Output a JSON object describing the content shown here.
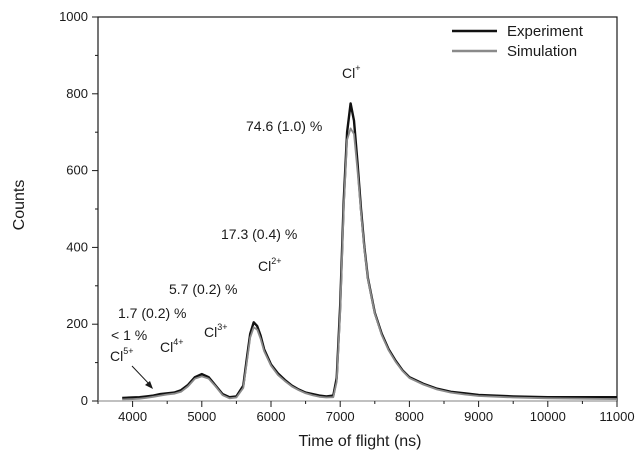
{
  "chart_data": {
    "type": "line",
    "title": "",
    "xlabel": "Time of flight (ns)",
    "ylabel": "Counts",
    "xlim": [
      3500,
      11000
    ],
    "ylim": [
      0,
      1000
    ],
    "x_ticks": [
      4000,
      5000,
      6000,
      7000,
      8000,
      9000,
      10000,
      11000
    ],
    "y_ticks": [
      0,
      200,
      400,
      600,
      800,
      1000
    ],
    "grid": false,
    "legend_position": "top-right",
    "series": [
      {
        "name": "Experiment",
        "color": "#111111",
        "points": [
          [
            3850,
            8
          ],
          [
            4000,
            9
          ],
          [
            4100,
            10
          ],
          [
            4200,
            12
          ],
          [
            4300,
            14
          ],
          [
            4400,
            18
          ],
          [
            4500,
            20
          ],
          [
            4600,
            22
          ],
          [
            4700,
            28
          ],
          [
            4800,
            42
          ],
          [
            4900,
            62
          ],
          [
            5000,
            70
          ],
          [
            5100,
            62
          ],
          [
            5200,
            40
          ],
          [
            5300,
            18
          ],
          [
            5400,
            10
          ],
          [
            5500,
            12
          ],
          [
            5600,
            40
          ],
          [
            5650,
            110
          ],
          [
            5700,
            175
          ],
          [
            5750,
            205
          ],
          [
            5800,
            195
          ],
          [
            5850,
            170
          ],
          [
            5900,
            135
          ],
          [
            6000,
            95
          ],
          [
            6100,
            72
          ],
          [
            6200,
            55
          ],
          [
            6300,
            40
          ],
          [
            6400,
            30
          ],
          [
            6500,
            22
          ],
          [
            6600,
            18
          ],
          [
            6700,
            14
          ],
          [
            6800,
            12
          ],
          [
            6900,
            14
          ],
          [
            6950,
            60
          ],
          [
            7000,
            250
          ],
          [
            7050,
            520
          ],
          [
            7100,
            700
          ],
          [
            7150,
            775
          ],
          [
            7200,
            730
          ],
          [
            7250,
            620
          ],
          [
            7300,
            500
          ],
          [
            7350,
            400
          ],
          [
            7400,
            320
          ],
          [
            7500,
            230
          ],
          [
            7600,
            175
          ],
          [
            7700,
            135
          ],
          [
            7800,
            105
          ],
          [
            7900,
            80
          ],
          [
            8000,
            62
          ],
          [
            8200,
            45
          ],
          [
            8400,
            32
          ],
          [
            8600,
            24
          ],
          [
            8800,
            20
          ],
          [
            9000,
            16
          ],
          [
            9500,
            12
          ],
          [
            10000,
            10
          ],
          [
            10500,
            10
          ],
          [
            11000,
            10
          ]
        ]
      },
      {
        "name": "Simulation",
        "color": "#8a8a8a",
        "points": [
          [
            3850,
            4
          ],
          [
            4000,
            5
          ],
          [
            4100,
            6
          ],
          [
            4200,
            8
          ],
          [
            4300,
            11
          ],
          [
            4400,
            14
          ],
          [
            4500,
            17
          ],
          [
            4600,
            19
          ],
          [
            4700,
            24
          ],
          [
            4800,
            38
          ],
          [
            4900,
            58
          ],
          [
            5000,
            64
          ],
          [
            5100,
            58
          ],
          [
            5200,
            38
          ],
          [
            5300,
            15
          ],
          [
            5400,
            7
          ],
          [
            5500,
            9
          ],
          [
            5600,
            34
          ],
          [
            5650,
            100
          ],
          [
            5700,
            165
          ],
          [
            5750,
            192
          ],
          [
            5800,
            186
          ],
          [
            5850,
            162
          ],
          [
            5900,
            130
          ],
          [
            6000,
            92
          ],
          [
            6100,
            68
          ],
          [
            6200,
            52
          ],
          [
            6300,
            38
          ],
          [
            6400,
            28
          ],
          [
            6500,
            20
          ],
          [
            6600,
            15
          ],
          [
            6700,
            11
          ],
          [
            6800,
            9
          ],
          [
            6900,
            10
          ],
          [
            6950,
            50
          ],
          [
            7000,
            230
          ],
          [
            7050,
            500
          ],
          [
            7100,
            680
          ],
          [
            7150,
            710
          ],
          [
            7200,
            695
          ],
          [
            7250,
            600
          ],
          [
            7300,
            490
          ],
          [
            7350,
            395
          ],
          [
            7400,
            318
          ],
          [
            7500,
            228
          ],
          [
            7600,
            172
          ],
          [
            7700,
            132
          ],
          [
            7800,
            102
          ],
          [
            7900,
            78
          ],
          [
            8000,
            60
          ],
          [
            8200,
            43
          ],
          [
            8400,
            30
          ],
          [
            8600,
            22
          ],
          [
            8800,
            17
          ],
          [
            9000,
            13
          ],
          [
            9500,
            9
          ],
          [
            10000,
            7
          ],
          [
            10500,
            6
          ],
          [
            11000,
            5
          ]
        ]
      }
    ],
    "annotations": {
      "cl1_label": "Cl",
      "cl1_charge": "+",
      "cl1_pct": "74.6 (1.0) %",
      "cl2_label": "Cl",
      "cl2_charge": "2+",
      "cl2_pct": "17.3 (0.4) %",
      "cl3_label": "Cl",
      "cl3_charge": "3+",
      "cl3_pct": "5.7 (0.2) %",
      "cl4_label": "Cl",
      "cl4_charge": "4+",
      "cl4_pct": "1.7 (0.2) %",
      "cl5_label": "Cl",
      "cl5_charge": "5+",
      "cl5_pct": "< 1 %"
    }
  }
}
